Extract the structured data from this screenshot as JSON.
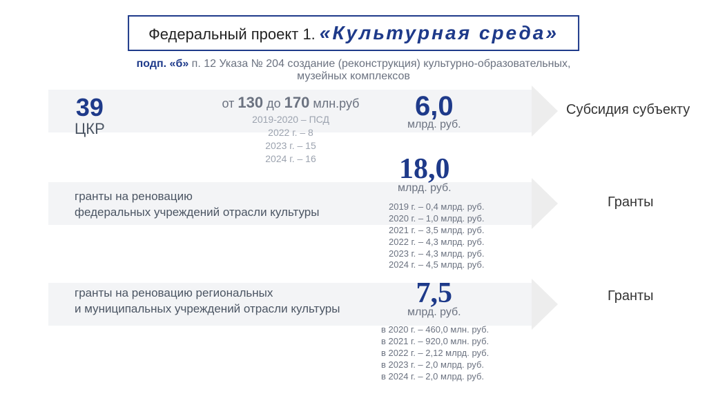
{
  "header": {
    "prefix": "Федеральный проект 1. ",
    "title": "«Культурная среда»"
  },
  "subtitle": {
    "bold": "подп. «б»",
    "rest": " п. 12 Указа № 204 создание (реконструкция) культурно-образовательных, музейных комплексов"
  },
  "ckr": {
    "num": "39",
    "label": "ЦКР"
  },
  "range": {
    "from_word": "от ",
    "from": "130",
    "to_word": " до ",
    "to": "170",
    "unit": " млн.руб",
    "lines": [
      "2019-2020 – ПСД",
      "2022 г. – 8",
      "2023 г. – 15",
      "2024 г. – 16"
    ]
  },
  "amounts": [
    {
      "num": "6,0",
      "unit": "млрд. руб."
    },
    {
      "num": "18,0",
      "unit": "млрд. руб."
    },
    {
      "num": "7,5",
      "unit": "млрд. руб."
    }
  ],
  "breakdown1": [
    "2019 г. – 0,4 млрд. руб.",
    "2020 г. – 1,0 млрд. руб.",
    "2021 г. – 3,5 млрд. руб.",
    "2022 г. – 4,3 млрд. руб.",
    "2023 г. – 4,3 млрд. руб.",
    "2024 г. – 4,5 млрд. руб."
  ],
  "breakdown2": [
    "в 2020 г. – 460,0 млн. руб.",
    "в 2021 г. – 920,0 млн. руб.",
    "в 2022 г. – 2,12 млрд. руб.",
    "в 2023 г. – 2,0 млрд. руб.",
    "в 2024 г. – 2,0 млрд. руб."
  ],
  "desc1": "гранты на реновацию\nфедеральных учреждений отрасли культуры",
  "desc2": "гранты на реновацию региональных\nи муниципальных учреждений отрасли культуры",
  "right_labels": [
    "Субсидия субъекту",
    "Гранты",
    "Гранты"
  ],
  "colors": {
    "accent": "#1e3a8a",
    "muted": "#6b7280",
    "band": "#f3f4f6"
  }
}
